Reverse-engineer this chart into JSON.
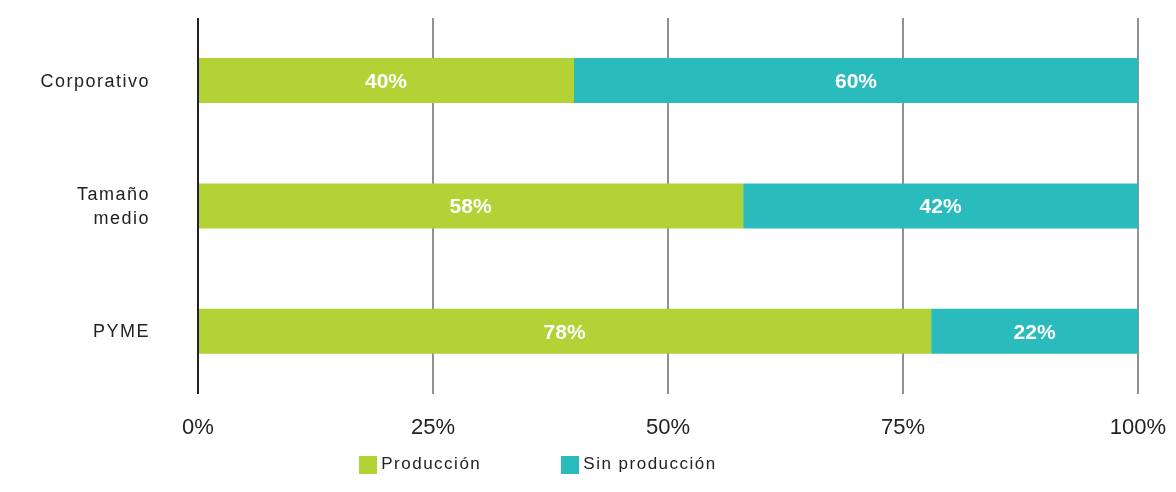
{
  "chart_data": {
    "type": "bar",
    "orientation": "horizontal",
    "stacked": true,
    "categories": [
      "Corporativo",
      "Tamaño medio",
      "PYME"
    ],
    "series": [
      {
        "name": "Producción",
        "color": "#b2d235",
        "values": [
          40,
          58,
          78
        ],
        "value_labels": [
          "40%",
          "58%",
          "78%"
        ]
      },
      {
        "name": "Sin producción",
        "color": "#2abcbc",
        "values": [
          60,
          42,
          22
        ],
        "value_labels": [
          "60%",
          "42%",
          "22%"
        ]
      }
    ],
    "xlim": [
      0,
      100
    ],
    "xticks": [
      {
        "value": 0,
        "label": "0%"
      },
      {
        "value": 25,
        "label": "25%"
      },
      {
        "value": 50,
        "label": "50%"
      },
      {
        "value": 75,
        "label": "75%"
      },
      {
        "value": 100,
        "label": "100%"
      }
    ],
    "grid": "x",
    "legend": "bottom"
  }
}
